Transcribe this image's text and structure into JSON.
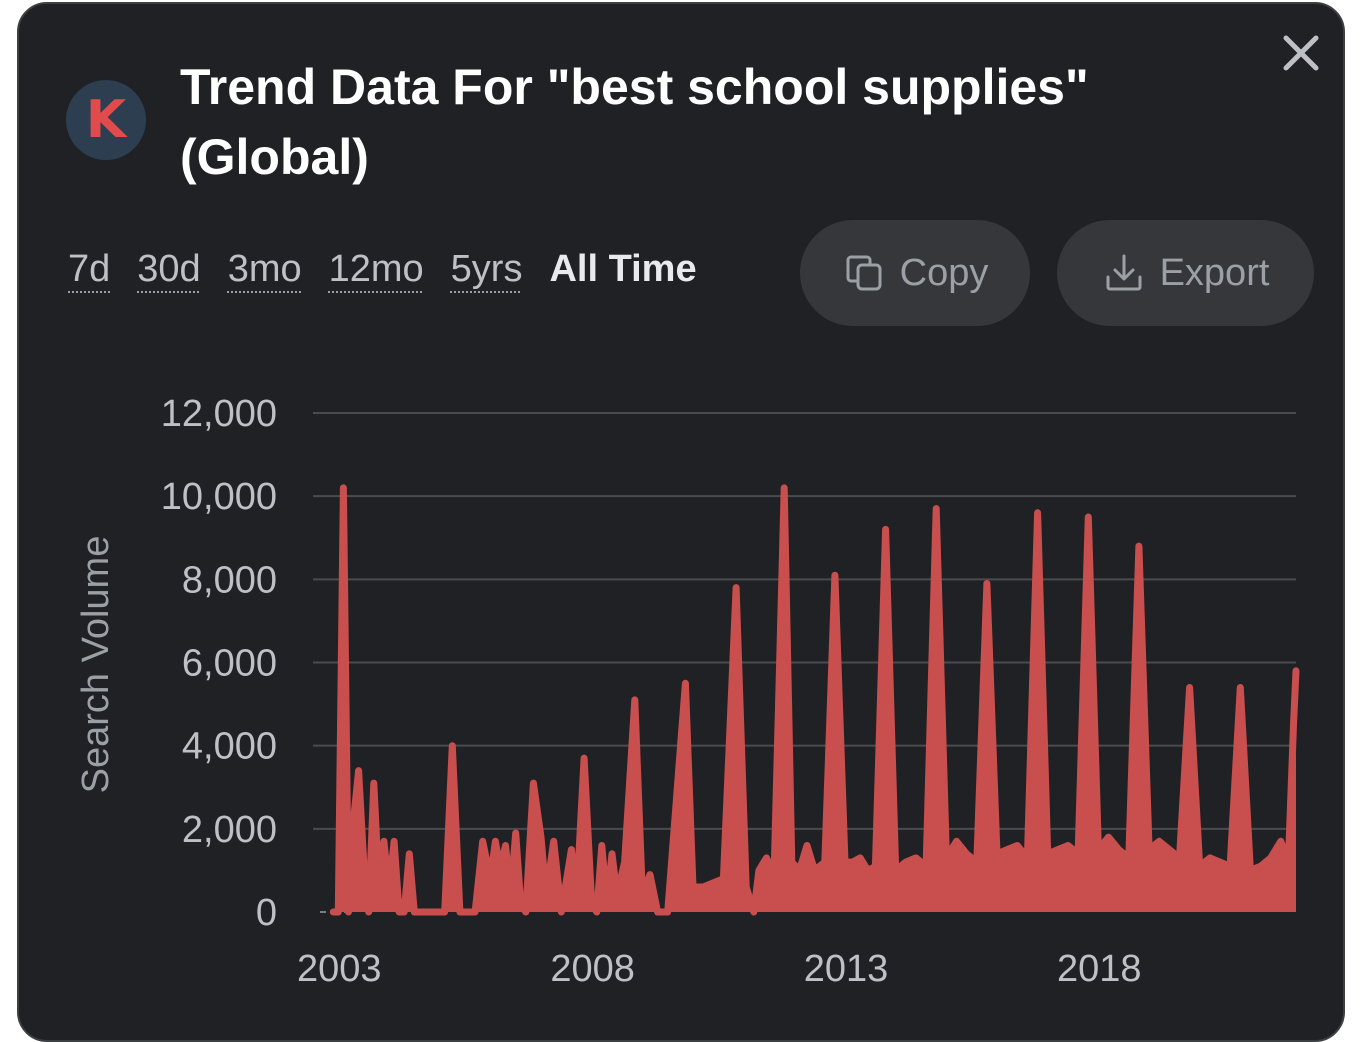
{
  "header": {
    "avatar_letter": "K",
    "title": "Trend Data For \"best school supplies\" (Global)",
    "close_icon": "close-icon"
  },
  "ranges": [
    {
      "label": "7d",
      "active": false
    },
    {
      "label": "30d",
      "active": false
    },
    {
      "label": "3mo",
      "active": false
    },
    {
      "label": "12mo",
      "active": false
    },
    {
      "label": "5yrs",
      "active": false
    },
    {
      "label": "All Time",
      "active": true
    }
  ],
  "actions": {
    "copy_label": "Copy",
    "copy_icon": "copy-icon",
    "export_label": "Export",
    "export_icon": "download-icon"
  },
  "colors": {
    "background": "#202124",
    "series": "#c94f4f",
    "grid": "#4a4b4f"
  },
  "chart_data": {
    "type": "area",
    "title": "",
    "xlabel": "",
    "ylabel": "Search Volume",
    "ylim": [
      0,
      12000
    ],
    "yticks": [
      "0",
      "2,000",
      "4,000",
      "6,000",
      "8,000",
      "10,000",
      "12,000"
    ],
    "yticks_values": [
      0,
      2000,
      4000,
      6000,
      8000,
      10000,
      12000
    ],
    "xticks": [
      "2003",
      "2008",
      "2013",
      "2018"
    ],
    "xticks_values": [
      2003,
      2008,
      2013,
      2018
    ],
    "grid": true,
    "legend": "none",
    "series": [
      {
        "name": "",
        "points": [
          [
            2003.0,
            0
          ],
          [
            2003.1,
            0
          ],
          [
            2003.2,
            10200
          ],
          [
            2003.3,
            0
          ],
          [
            2003.4,
            2200
          ],
          [
            2003.5,
            3400
          ],
          [
            2003.6,
            1200
          ],
          [
            2003.7,
            0
          ],
          [
            2003.8,
            3100
          ],
          [
            2003.9,
            600
          ],
          [
            2004.0,
            1700
          ],
          [
            2004.1,
            500
          ],
          [
            2004.2,
            1700
          ],
          [
            2004.3,
            0
          ],
          [
            2004.4,
            0
          ],
          [
            2004.5,
            1400
          ],
          [
            2004.6,
            0
          ],
          [
            2004.8,
            0
          ],
          [
            2004.9,
            0
          ],
          [
            2005.0,
            0
          ],
          [
            2005.1,
            0
          ],
          [
            2005.2,
            0
          ],
          [
            2005.35,
            4000
          ],
          [
            2005.5,
            0
          ],
          [
            2005.7,
            0
          ],
          [
            2005.8,
            0
          ],
          [
            2005.95,
            1700
          ],
          [
            2006.1,
            800
          ],
          [
            2006.2,
            1700
          ],
          [
            2006.3,
            1000
          ],
          [
            2006.4,
            1600
          ],
          [
            2006.5,
            400
          ],
          [
            2006.6,
            1900
          ],
          [
            2006.7,
            200
          ],
          [
            2006.8,
            0
          ],
          [
            2006.95,
            3100
          ],
          [
            2007.1,
            1800
          ],
          [
            2007.2,
            400
          ],
          [
            2007.35,
            1700
          ],
          [
            2007.5,
            0
          ],
          [
            2007.7,
            1500
          ],
          [
            2007.8,
            300
          ],
          [
            2007.95,
            3700
          ],
          [
            2008.1,
            200
          ],
          [
            2008.2,
            0
          ],
          [
            2008.3,
            1600
          ],
          [
            2008.4,
            200
          ],
          [
            2008.5,
            1400
          ],
          [
            2008.6,
            400
          ],
          [
            2008.75,
            1200
          ],
          [
            2008.95,
            5100
          ],
          [
            2009.1,
            400
          ],
          [
            2009.25,
            900
          ],
          [
            2009.4,
            0
          ],
          [
            2009.6,
            0
          ],
          [
            2009.95,
            5500
          ],
          [
            2010.1,
            600
          ],
          [
            2010.3,
            600
          ],
          [
            2010.5,
            700
          ],
          [
            2010.7,
            800
          ],
          [
            2010.95,
            7800
          ],
          [
            2011.15,
            600
          ],
          [
            2011.3,
            0
          ],
          [
            2011.4,
            1000
          ],
          [
            2011.55,
            1300
          ],
          [
            2011.7,
            900
          ],
          [
            2011.9,
            10200
          ],
          [
            2012.05,
            1200
          ],
          [
            2012.2,
            1000
          ],
          [
            2012.35,
            1600
          ],
          [
            2012.5,
            1000
          ],
          [
            2012.7,
            1200
          ],
          [
            2012.9,
            8100
          ],
          [
            2013.1,
            1200
          ],
          [
            2013.25,
            1200
          ],
          [
            2013.4,
            1300
          ],
          [
            2013.55,
            1000
          ],
          [
            2013.7,
            1100
          ],
          [
            2013.9,
            9200
          ],
          [
            2014.1,
            1000
          ],
          [
            2014.3,
            1200
          ],
          [
            2014.5,
            1300
          ],
          [
            2014.7,
            1100
          ],
          [
            2014.9,
            9700
          ],
          [
            2015.1,
            1300
          ],
          [
            2015.3,
            1700
          ],
          [
            2015.5,
            1400
          ],
          [
            2015.7,
            1200
          ],
          [
            2015.9,
            7900
          ],
          [
            2016.1,
            1400
          ],
          [
            2016.3,
            1500
          ],
          [
            2016.5,
            1600
          ],
          [
            2016.7,
            1300
          ],
          [
            2016.9,
            9600
          ],
          [
            2017.1,
            1400
          ],
          [
            2017.3,
            1500
          ],
          [
            2017.5,
            1600
          ],
          [
            2017.7,
            1400
          ],
          [
            2017.9,
            9500
          ],
          [
            2018.1,
            1500
          ],
          [
            2018.3,
            1800
          ],
          [
            2018.5,
            1500
          ],
          [
            2018.7,
            1300
          ],
          [
            2018.9,
            8800
          ],
          [
            2019.1,
            1500
          ],
          [
            2019.3,
            1700
          ],
          [
            2019.5,
            1500
          ],
          [
            2019.7,
            1300
          ],
          [
            2019.9,
            5400
          ],
          [
            2020.1,
            1100
          ],
          [
            2020.3,
            1300
          ],
          [
            2020.5,
            1200
          ],
          [
            2020.7,
            1100
          ],
          [
            2020.9,
            5400
          ],
          [
            2021.1,
            1000
          ],
          [
            2021.3,
            1100
          ],
          [
            2021.5,
            1300
          ],
          [
            2021.7,
            1700
          ],
          [
            2021.85,
            1200
          ],
          [
            2021.95,
            4500
          ],
          [
            2022.0,
            5800
          ]
        ]
      }
    ]
  }
}
